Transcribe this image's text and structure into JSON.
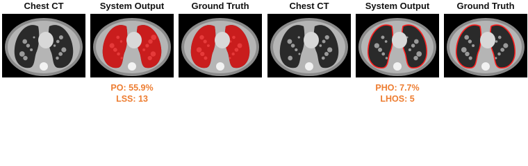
{
  "panels": [
    {
      "images": [
        {
          "title": "Chest CT"
        },
        {
          "title": "System Output"
        },
        {
          "title": "Ground Truth"
        }
      ],
      "metrics": [
        "PO: 55.9%",
        "LSS: 13"
      ]
    },
    {
      "images": [
        {
          "title": "Chest CT"
        },
        {
          "title": "System Output"
        },
        {
          "title": "Ground Truth"
        }
      ],
      "metrics": [
        "PHO: 7.7%",
        "LHOS: 5"
      ]
    }
  ]
}
